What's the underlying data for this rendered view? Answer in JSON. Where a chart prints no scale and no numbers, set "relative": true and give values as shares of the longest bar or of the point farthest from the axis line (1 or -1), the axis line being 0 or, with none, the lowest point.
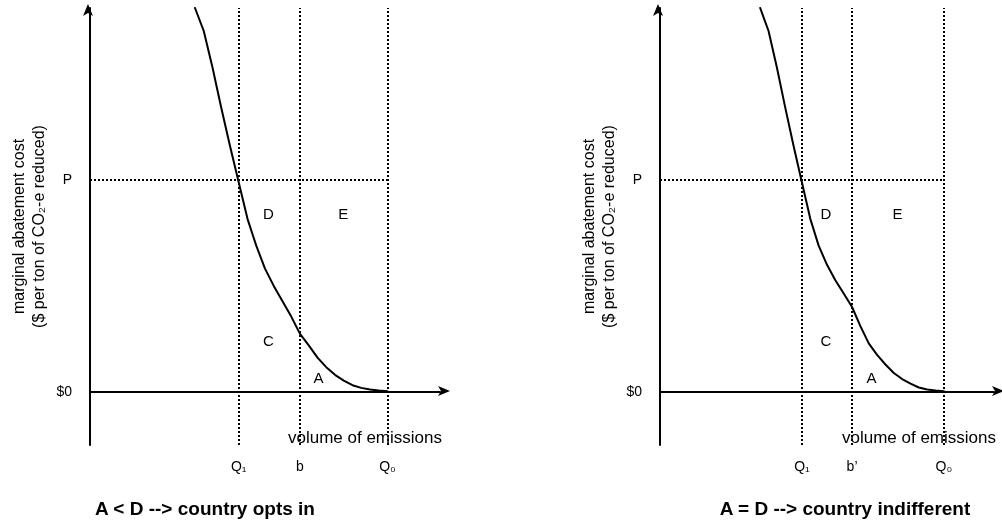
{
  "chart_data": [
    {
      "type": "line",
      "relative": true,
      "title": "A < D --> country opts in",
      "xlabel": "volume of emissions",
      "ylabel": "marginal abatement cost\n($ per ton of CO₂-e reduced)",
      "categories": [
        null,
        null,
        null,
        null,
        null,
        null,
        null,
        null,
        null,
        null,
        null,
        null,
        null,
        null,
        null,
        null,
        null,
        "Q₁",
        null,
        null,
        null,
        null,
        null,
        null,
        "b",
        null,
        null,
        null,
        null,
        null,
        null,
        null,
        null,
        null,
        "Q₀",
        null,
        null,
        null,
        null,
        null,
        null
      ],
      "grid": false,
      "marker": "none",
      "line_style": "solid",
      "series": [
        {
          "color": "#000000",
          "values": [
            null,
            null,
            null,
            null,
            null,
            null,
            null,
            null,
            null,
            null,
            null,
            null,
            1.0,
            0.94,
            0.845,
            0.74,
            0.64,
            0.545,
            0.45,
            0.38,
            0.32,
            0.275,
            0.235,
            0.195,
            0.15,
            0.12,
            0.088,
            0.063,
            0.043,
            0.028,
            0.016,
            0.009,
            0.005,
            0.002,
            0,
            null,
            null,
            null,
            null,
            null,
            null
          ]
        }
      ],
      "ref_lines": [
        {
          "axis": "y",
          "value": 0,
          "label": "$0"
        },
        {
          "axis": "y",
          "value": 0.553,
          "label": "P",
          "line_style": "dotted",
          "color": "#000000"
        },
        {
          "axis": "x",
          "value": "Q₁",
          "line_style": "dotted",
          "color": "#000000"
        },
        {
          "axis": "x",
          "value": "b",
          "line_style": "dotted",
          "color": "#000000"
        },
        {
          "axis": "x",
          "value": "Q₀",
          "line_style": "dotted",
          "color": "#000000"
        }
      ],
      "annotations": [
        "D",
        "E",
        "C",
        "A"
      ]
    },
    {
      "type": "line",
      "relative": true,
      "title": "A = D --> country indifferent",
      "xlabel": "volume of emissions",
      "ylabel": "marginal abatement cost\n($ per ton of CO₂-e reduced)",
      "categories": [
        null,
        null,
        null,
        null,
        null,
        null,
        null,
        null,
        null,
        null,
        null,
        null,
        null,
        null,
        null,
        null,
        null,
        "Q₁",
        null,
        null,
        null,
        null,
        null,
        "b’",
        null,
        null,
        null,
        null,
        null,
        null,
        null,
        null,
        null,
        null,
        "Q₀",
        null,
        null,
        null,
        null,
        null,
        null
      ],
      "grid": false,
      "marker": "none",
      "line_style": "solid",
      "series": [
        {
          "color": "#000000",
          "values": [
            null,
            null,
            null,
            null,
            null,
            null,
            null,
            null,
            null,
            null,
            null,
            null,
            1.0,
            0.94,
            0.845,
            0.74,
            0.64,
            0.545,
            0.45,
            0.38,
            0.33,
            0.29,
            0.255,
            0.22,
            0.17,
            0.125,
            0.095,
            0.07,
            0.048,
            0.032,
            0.02,
            0.01,
            0.005,
            0.002,
            0,
            null,
            null,
            null,
            null,
            null,
            null
          ]
        }
      ],
      "ref_lines": [
        {
          "axis": "y",
          "value": 0,
          "label": "$0"
        },
        {
          "axis": "y",
          "value": 0.553,
          "label": "P",
          "line_style": "dotted",
          "color": "#000000"
        },
        {
          "axis": "x",
          "value": "Q₁",
          "line_style": "dotted",
          "color": "#000000"
        },
        {
          "axis": "x",
          "value": "b’",
          "line_style": "dotted",
          "color": "#000000"
        },
        {
          "axis": "x",
          "value": "Q₀",
          "line_style": "dotted",
          "color": "#000000"
        }
      ],
      "annotations": [
        "D",
        "E",
        "C",
        "A"
      ]
    }
  ]
}
